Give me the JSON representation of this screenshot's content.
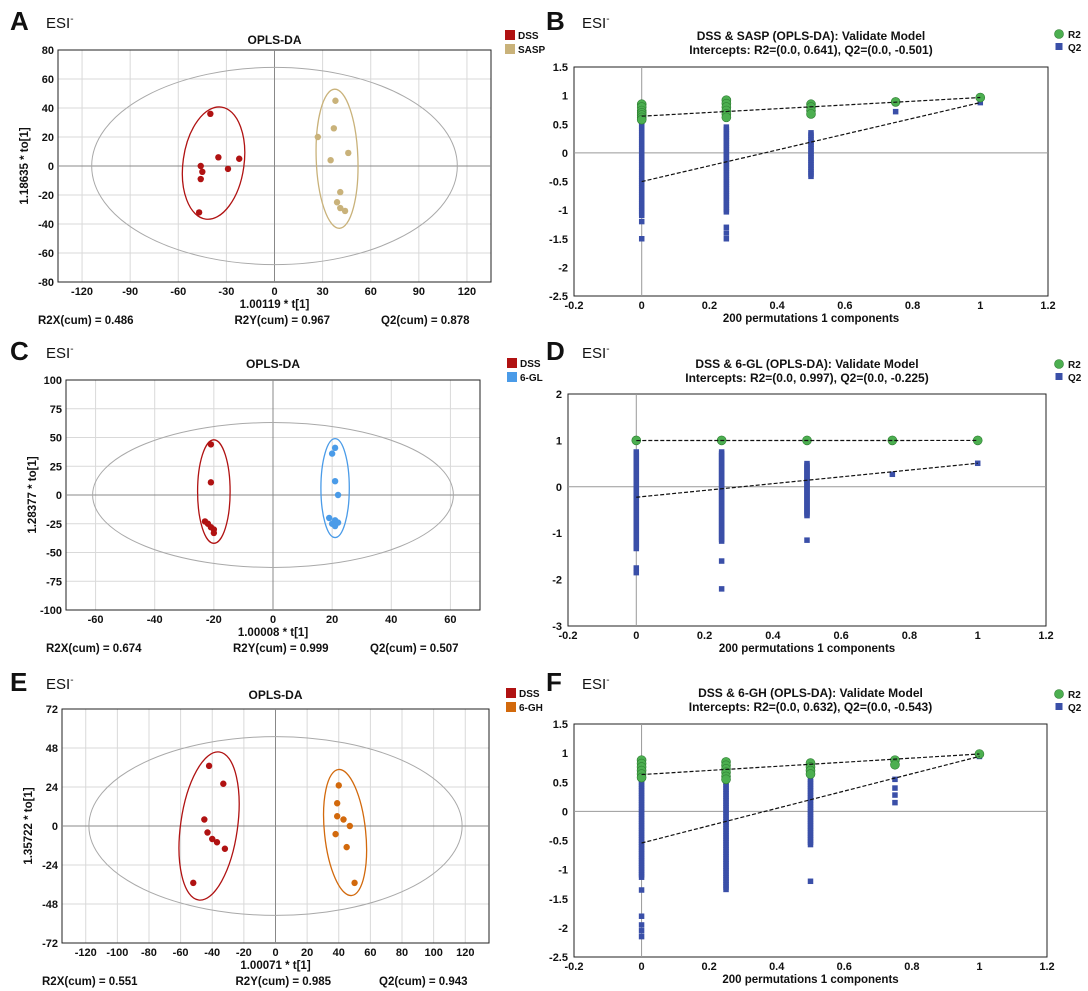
{
  "colors": {
    "dss": "#b01212",
    "sasp": "#c9b27a",
    "gl6": "#4a9be8",
    "gh6": "#d2690c",
    "r2": "#4caf50",
    "q2": "#3a4fa8"
  },
  "chart_data": [
    {
      "panel": "A",
      "type": "scatter",
      "esi": "ESI",
      "esi_sup": "-",
      "title": "OPLS-DA",
      "xlabel": "1.00119 * t[1]",
      "ylabel": "1.18635 * to[1]",
      "xlim": [
        -135,
        135
      ],
      "ylim": [
        -80,
        80
      ],
      "xticks": [
        -120,
        -90,
        -60,
        -30,
        0,
        30,
        60,
        90,
        120
      ],
      "yticks": [
        -80,
        -60,
        -40,
        -20,
        0,
        20,
        40,
        60,
        80
      ],
      "grid": true,
      "legend_position": "top-right",
      "stats": [
        "R2X(cum) = 0.486",
        "R2Y(cum) = 0.967",
        "Q2(cum) = 0.878"
      ],
      "hotelling_ellipse": {
        "cx": 0,
        "cy": 0,
        "rx": 114,
        "ry": 68
      },
      "series": [
        {
          "name": "DSS",
          "color_key": "dss",
          "points": [
            [
              -40,
              36
            ],
            [
              -35,
              6
            ],
            [
              -46,
              0
            ],
            [
              -45,
              -4
            ],
            [
              -46,
              -9
            ],
            [
              -29,
              -2
            ],
            [
              -22,
              5
            ],
            [
              -47,
              -32
            ]
          ],
          "ellipse": {
            "cx": -38,
            "cy": 2,
            "rx": 19,
            "ry": 39,
            "angle": 8
          }
        },
        {
          "name": "SASP",
          "color_key": "sasp",
          "points": [
            [
              38,
              45
            ],
            [
              27,
              20
            ],
            [
              37,
              26
            ],
            [
              46,
              9
            ],
            [
              41,
              -18
            ],
            [
              39,
              -25
            ],
            [
              41,
              -29
            ],
            [
              44,
              -31
            ],
            [
              35,
              4
            ]
          ],
          "ellipse": {
            "cx": 39,
            "cy": 5,
            "rx": 13,
            "ry": 48,
            "angle": -2
          }
        }
      ]
    },
    {
      "panel": "B",
      "type": "scatter",
      "esi": "ESI",
      "esi_sup": "-",
      "title": "DSS & SASP (OPLS-DA): Validate Model",
      "subtitle": "Intercepts: R2=(0.0, 0.641), Q2=(0.0, -0.501)",
      "xlabel": "200 permutations 1 components",
      "xlim": [
        -0.2,
        1.2
      ],
      "ylim": [
        -2.5,
        1.5
      ],
      "xticks": [
        -0.2,
        0,
        0.2,
        0.4,
        0.6,
        0.8,
        1,
        1.2
      ],
      "yticks": [
        -2.5,
        -2,
        -1.5,
        -1,
        -0.5,
        0,
        0.5,
        1,
        1.5
      ],
      "legend_position": "top-right",
      "legend": [
        "R2",
        "Q2"
      ],
      "r2_line": {
        "intercept": 0.641,
        "end": 0.967
      },
      "q2_line": {
        "intercept": -0.501,
        "end": 0.878
      },
      "r2_points": [
        [
          0,
          0.85
        ],
        [
          0,
          0.8
        ],
        [
          0,
          0.74
        ],
        [
          0,
          0.7
        ],
        [
          0,
          0.66
        ],
        [
          0,
          0.62
        ],
        [
          0,
          0.58
        ],
        [
          0.25,
          0.92
        ],
        [
          0.25,
          0.86
        ],
        [
          0.25,
          0.8
        ],
        [
          0.25,
          0.74
        ],
        [
          0.25,
          0.68
        ],
        [
          0.25,
          0.62
        ],
        [
          0.5,
          0.85
        ],
        [
          0.5,
          0.8
        ],
        [
          0.5,
          0.74
        ],
        [
          0.5,
          0.68
        ],
        [
          0.75,
          0.89
        ],
        [
          1,
          0.967
        ]
      ],
      "q2_bands": [
        [
          0,
          0.55,
          -1.1
        ],
        [
          0.25,
          0.45,
          -1.05
        ],
        [
          0.5,
          0.35,
          -0.42
        ]
      ],
      "q2_points": [
        [
          0,
          -1.2
        ],
        [
          0,
          -1.5
        ],
        [
          0.25,
          -1.3
        ],
        [
          0.25,
          -1.4
        ],
        [
          0.25,
          -1.5
        ],
        [
          0.75,
          0.72
        ],
        [
          1,
          0.878
        ]
      ]
    },
    {
      "panel": "C",
      "type": "scatter",
      "esi": "ESI",
      "esi_sup": "-",
      "title": "OPLS-DA",
      "xlabel": "1.00008 * t[1]",
      "ylabel": "1.28377 * to[1]",
      "xlim": [
        -70,
        70
      ],
      "ylim": [
        -100,
        100
      ],
      "xticks": [
        -60,
        -40,
        -20,
        0,
        20,
        40,
        60
      ],
      "yticks": [
        -100,
        -75,
        -50,
        -25,
        0,
        25,
        50,
        75,
        100
      ],
      "grid": true,
      "legend_position": "top-right",
      "stats": [
        "R2X(cum) = 0.674",
        "R2Y(cum) = 0.999",
        "Q2(cum) = 0.507"
      ],
      "hotelling_ellipse": {
        "cx": 0,
        "cy": 0,
        "rx": 61,
        "ry": 63
      },
      "series": [
        {
          "name": "DSS",
          "color_key": "dss",
          "points": [
            [
              -21,
              44
            ],
            [
              -21,
              11
            ],
            [
              -23,
              -23
            ],
            [
              -22,
              -25
            ],
            [
              -21,
              -28
            ],
            [
              -20,
              -30
            ],
            [
              -20,
              -33
            ]
          ],
          "ellipse": {
            "cx": -20,
            "cy": 3,
            "rx": 5.5,
            "ry": 45,
            "angle": 0
          }
        },
        {
          "name": "6-GL",
          "color_key": "gl6",
          "points": [
            [
              21,
              41
            ],
            [
              20,
              36
            ],
            [
              21,
              12
            ],
            [
              22,
              0
            ],
            [
              19,
              -20
            ],
            [
              21,
              -22
            ],
            [
              20,
              -25
            ],
            [
              21,
              -27
            ],
            [
              22,
              -24
            ]
          ],
          "ellipse": {
            "cx": 21,
            "cy": 6,
            "rx": 4.8,
            "ry": 43,
            "angle": 0
          }
        }
      ]
    },
    {
      "panel": "D",
      "type": "scatter",
      "esi": "ESI",
      "esi_sup": "-",
      "title": "DSS & 6-GL (OPLS-DA): Validate Model",
      "subtitle": "Intercepts: R2=(0.0, 0.997), Q2=(0.0, -0.225)",
      "xlabel": "200 permutations 1 components",
      "xlim": [
        -0.2,
        1.2
      ],
      "ylim": [
        -3,
        2
      ],
      "xticks": [
        -0.2,
        0,
        0.2,
        0.4,
        0.6,
        0.8,
        1,
        1.2
      ],
      "yticks": [
        -3,
        -2,
        -1,
        0,
        1,
        2
      ],
      "legend_position": "top-right",
      "legend": [
        "R2",
        "Q2"
      ],
      "r2_line": {
        "intercept": 0.997,
        "end": 0.999
      },
      "q2_line": {
        "intercept": -0.225,
        "end": 0.507
      },
      "r2_points": [
        [
          0,
          1
        ],
        [
          0.25,
          1
        ],
        [
          0.5,
          1
        ],
        [
          0.75,
          1
        ],
        [
          1,
          1
        ]
      ],
      "q2_bands": [
        [
          0,
          0.75,
          -1.35
        ],
        [
          0.25,
          0.75,
          -1.2
        ],
        [
          0.5,
          0.5,
          -0.65
        ]
      ],
      "q2_points": [
        [
          0,
          -1.75
        ],
        [
          0,
          -1.85
        ],
        [
          0.25,
          -1.6
        ],
        [
          0.25,
          -2.2
        ],
        [
          0.5,
          -1.15
        ],
        [
          0.75,
          0.27
        ],
        [
          1,
          0.507
        ]
      ]
    },
    {
      "panel": "E",
      "type": "scatter",
      "esi": "ESI",
      "esi_sup": "-",
      "title": "OPLS-DA",
      "xlabel": "1.00071 * t[1]",
      "ylabel": "1.35722 * to[1]",
      "xlim": [
        -135,
        135
      ],
      "ylim": [
        -72,
        72
      ],
      "xticks": [
        -120,
        -100,
        -80,
        -60,
        -40,
        -20,
        0,
        20,
        40,
        60,
        80,
        100,
        120
      ],
      "yticks": [
        -72,
        -48,
        -24,
        0,
        24,
        48,
        72
      ],
      "grid": true,
      "legend_position": "top-right",
      "stats": [
        "R2X(cum) = 0.551",
        "R2Y(cum) = 0.985",
        "Q2(cum) = 0.943"
      ],
      "hotelling_ellipse": {
        "cx": 0,
        "cy": 0,
        "rx": 118,
        "ry": 55
      },
      "series": [
        {
          "name": "DSS",
          "color_key": "dss",
          "points": [
            [
              -42,
              37
            ],
            [
              -33,
              26
            ],
            [
              -45,
              4
            ],
            [
              -43,
              -4
            ],
            [
              -40,
              -8
            ],
            [
              -37,
              -10
            ],
            [
              -32,
              -14
            ],
            [
              -52,
              -35
            ]
          ],
          "ellipse": {
            "cx": -42,
            "cy": 0,
            "rx": 18,
            "ry": 46,
            "angle": 8
          }
        },
        {
          "name": "6-GH",
          "color_key": "gh6",
          "points": [
            [
              40,
              25
            ],
            [
              39,
              14
            ],
            [
              39,
              6
            ],
            [
              43,
              4
            ],
            [
              47,
              0
            ],
            [
              38,
              -5
            ],
            [
              45,
              -13
            ],
            [
              50,
              -35
            ]
          ],
          "ellipse": {
            "cx": 44,
            "cy": -4,
            "rx": 13,
            "ry": 39,
            "angle": -6
          }
        }
      ]
    },
    {
      "panel": "F",
      "type": "scatter",
      "esi": "ESI",
      "esi_sup": "-",
      "title": "DSS & 6-GH (OPLS-DA): Validate Model",
      "subtitle": "Intercepts: R2=(0.0, 0.632), Q2=(0.0, -0.543)",
      "xlabel": "200 permutations 1 components",
      "xlim": [
        -0.2,
        1.2
      ],
      "ylim": [
        -2.5,
        1.5
      ],
      "xticks": [
        -0.2,
        0,
        0.2,
        0.4,
        0.6,
        0.8,
        1,
        1.2
      ],
      "yticks": [
        -2.5,
        -2,
        -1.5,
        -1,
        -0.5,
        0,
        0.5,
        1,
        1.5
      ],
      "legend_position": "top-right",
      "legend": [
        "R2",
        "Q2"
      ],
      "r2_line": {
        "intercept": 0.632,
        "end": 0.985
      },
      "q2_line": {
        "intercept": -0.543,
        "end": 0.943
      },
      "r2_points": [
        [
          0,
          0.88
        ],
        [
          0,
          0.82
        ],
        [
          0,
          0.76
        ],
        [
          0,
          0.7
        ],
        [
          0,
          0.64
        ],
        [
          0,
          0.58
        ],
        [
          0.25,
          0.85
        ],
        [
          0.25,
          0.79
        ],
        [
          0.25,
          0.73
        ],
        [
          0.25,
          0.67
        ],
        [
          0.25,
          0.6
        ],
        [
          0.25,
          0.55
        ],
        [
          0.5,
          0.83
        ],
        [
          0.5,
          0.76
        ],
        [
          0.5,
          0.7
        ],
        [
          0.5,
          0.64
        ],
        [
          0.75,
          0.88
        ],
        [
          0.75,
          0.8
        ],
        [
          1,
          0.985
        ]
      ],
      "q2_bands": [
        [
          0,
          0.55,
          -1.15
        ],
        [
          0.25,
          0.5,
          -1.35
        ],
        [
          0.5,
          0.55,
          -0.6
        ]
      ],
      "q2_points": [
        [
          0,
          -1.35
        ],
        [
          0,
          -1.8
        ],
        [
          0,
          -1.95
        ],
        [
          0,
          -2.05
        ],
        [
          0,
          -2.15
        ],
        [
          0.5,
          -1.2
        ],
        [
          0.75,
          0.55
        ],
        [
          0.75,
          0.4
        ],
        [
          0.75,
          0.28
        ],
        [
          0.75,
          0.15
        ],
        [
          1,
          0.943
        ]
      ]
    }
  ]
}
